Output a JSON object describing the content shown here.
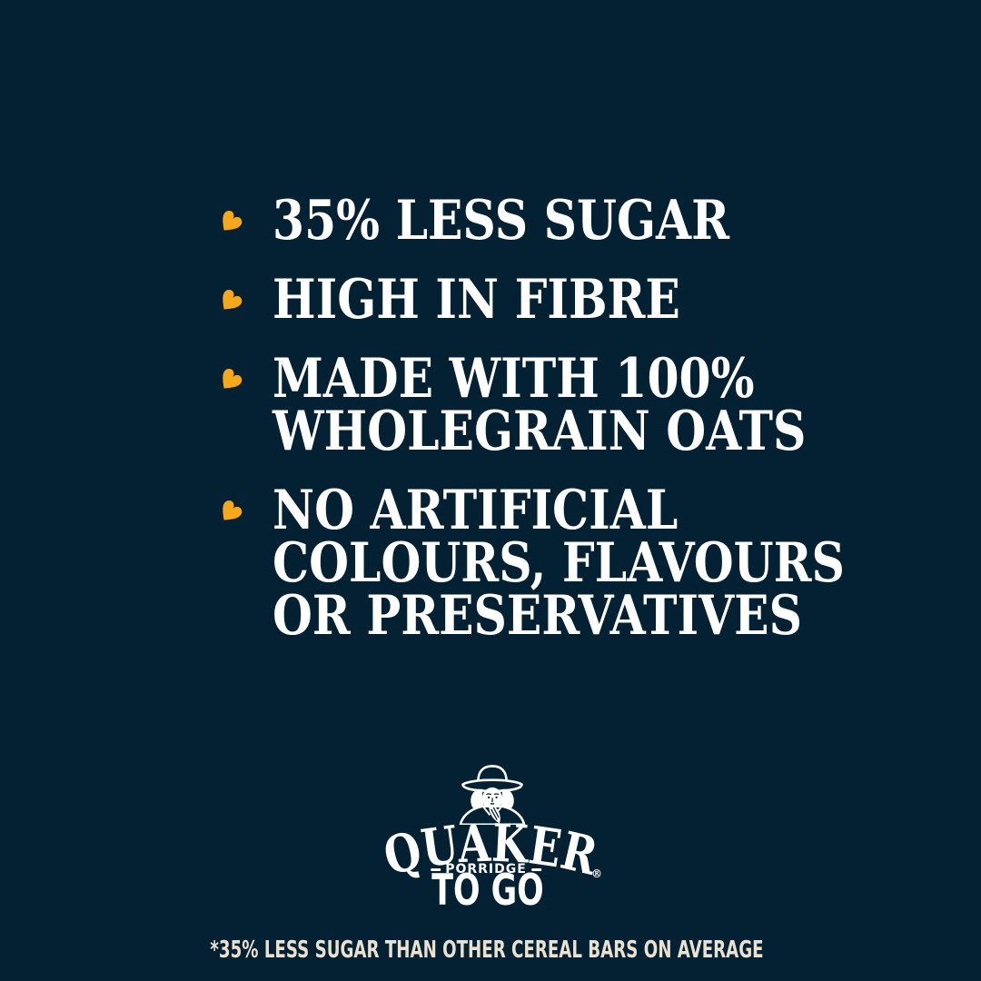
{
  "colors": {
    "background": "#042133",
    "bullet_yellow": "#F5A81C",
    "headline_white": "#FFFFFF",
    "footnote_cream": "#EAE1D1"
  },
  "claims": [
    {
      "lines": [
        "35% LESS SUGAR"
      ]
    },
    {
      "lines": [
        "HIGH IN FIBRE"
      ]
    },
    {
      "lines": [
        "MADE WITH 100%",
        "WHOLEGRAIN OATS"
      ]
    },
    {
      "lines": [
        "NO ARTIFICIAL",
        "COLOURS, FLAVOURS",
        "OR PRESERVATIVES"
      ]
    }
  ],
  "bullet_icon_name": "oat-grain-icon",
  "logo": {
    "mascot_icon_name": "quaker-man-icon",
    "brand_name": "QUAKER",
    "registered_mark": "®",
    "descriptor": "PORRIDGE",
    "product_line": "TO GO"
  },
  "footnote": {
    "text": "*35% LESS SUGAR THAN OTHER CEREAL BARS ON AVERAGE"
  }
}
